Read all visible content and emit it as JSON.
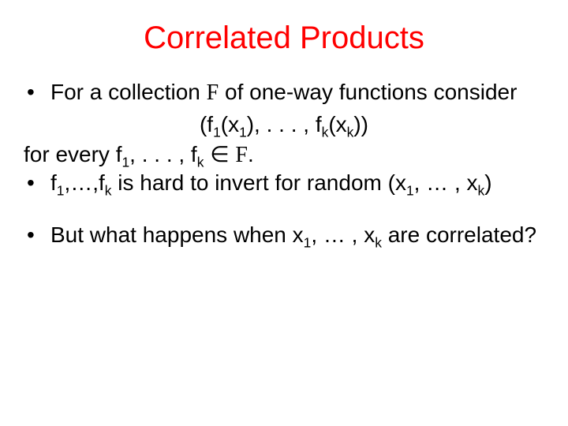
{
  "slide": {
    "title": "Correlated Products",
    "title_color": "#ff0000",
    "title_fontsize": 40,
    "body_fontsize": 28,
    "background_color": "#ffffff",
    "text_color": "#000000",
    "bullets": {
      "b1_prefix": "For a collection ",
      "b1_Fsym": "F",
      "b1_suffix": " of one-way functions consider",
      "formula_p1": "(f",
      "formula_s1": "1",
      "formula_p2": "(x",
      "formula_s2": "1",
      "formula_p3": "), . . . , f",
      "formula_s3": "k",
      "formula_p4": "(x",
      "formula_s4": "k",
      "formula_p5": "))",
      "fe_prefix": "for every ",
      "fe_f": "f",
      "fe_s1": "1",
      "fe_mid": ", . . . , f",
      "fe_sk": "k",
      "fe_space": " ",
      "fe_in": "∈",
      "fe_F": "F",
      "fe_dot": ".",
      "b2_f": "f",
      "b2_s1": "1",
      "b2_mid1": ",…,f",
      "b2_sk": "k",
      "b2_mid2": " is hard to invert for random (x",
      "b2_sx1": "1",
      "b2_mid3": ", … , x",
      "b2_sxk": "k",
      "b2_close": ")",
      "b3_p1": "But what happens when x",
      "b3_s1": "1",
      "b3_mid": ", … , x",
      "b3_sk": "k",
      "b3_p2": " are correlated?"
    }
  }
}
